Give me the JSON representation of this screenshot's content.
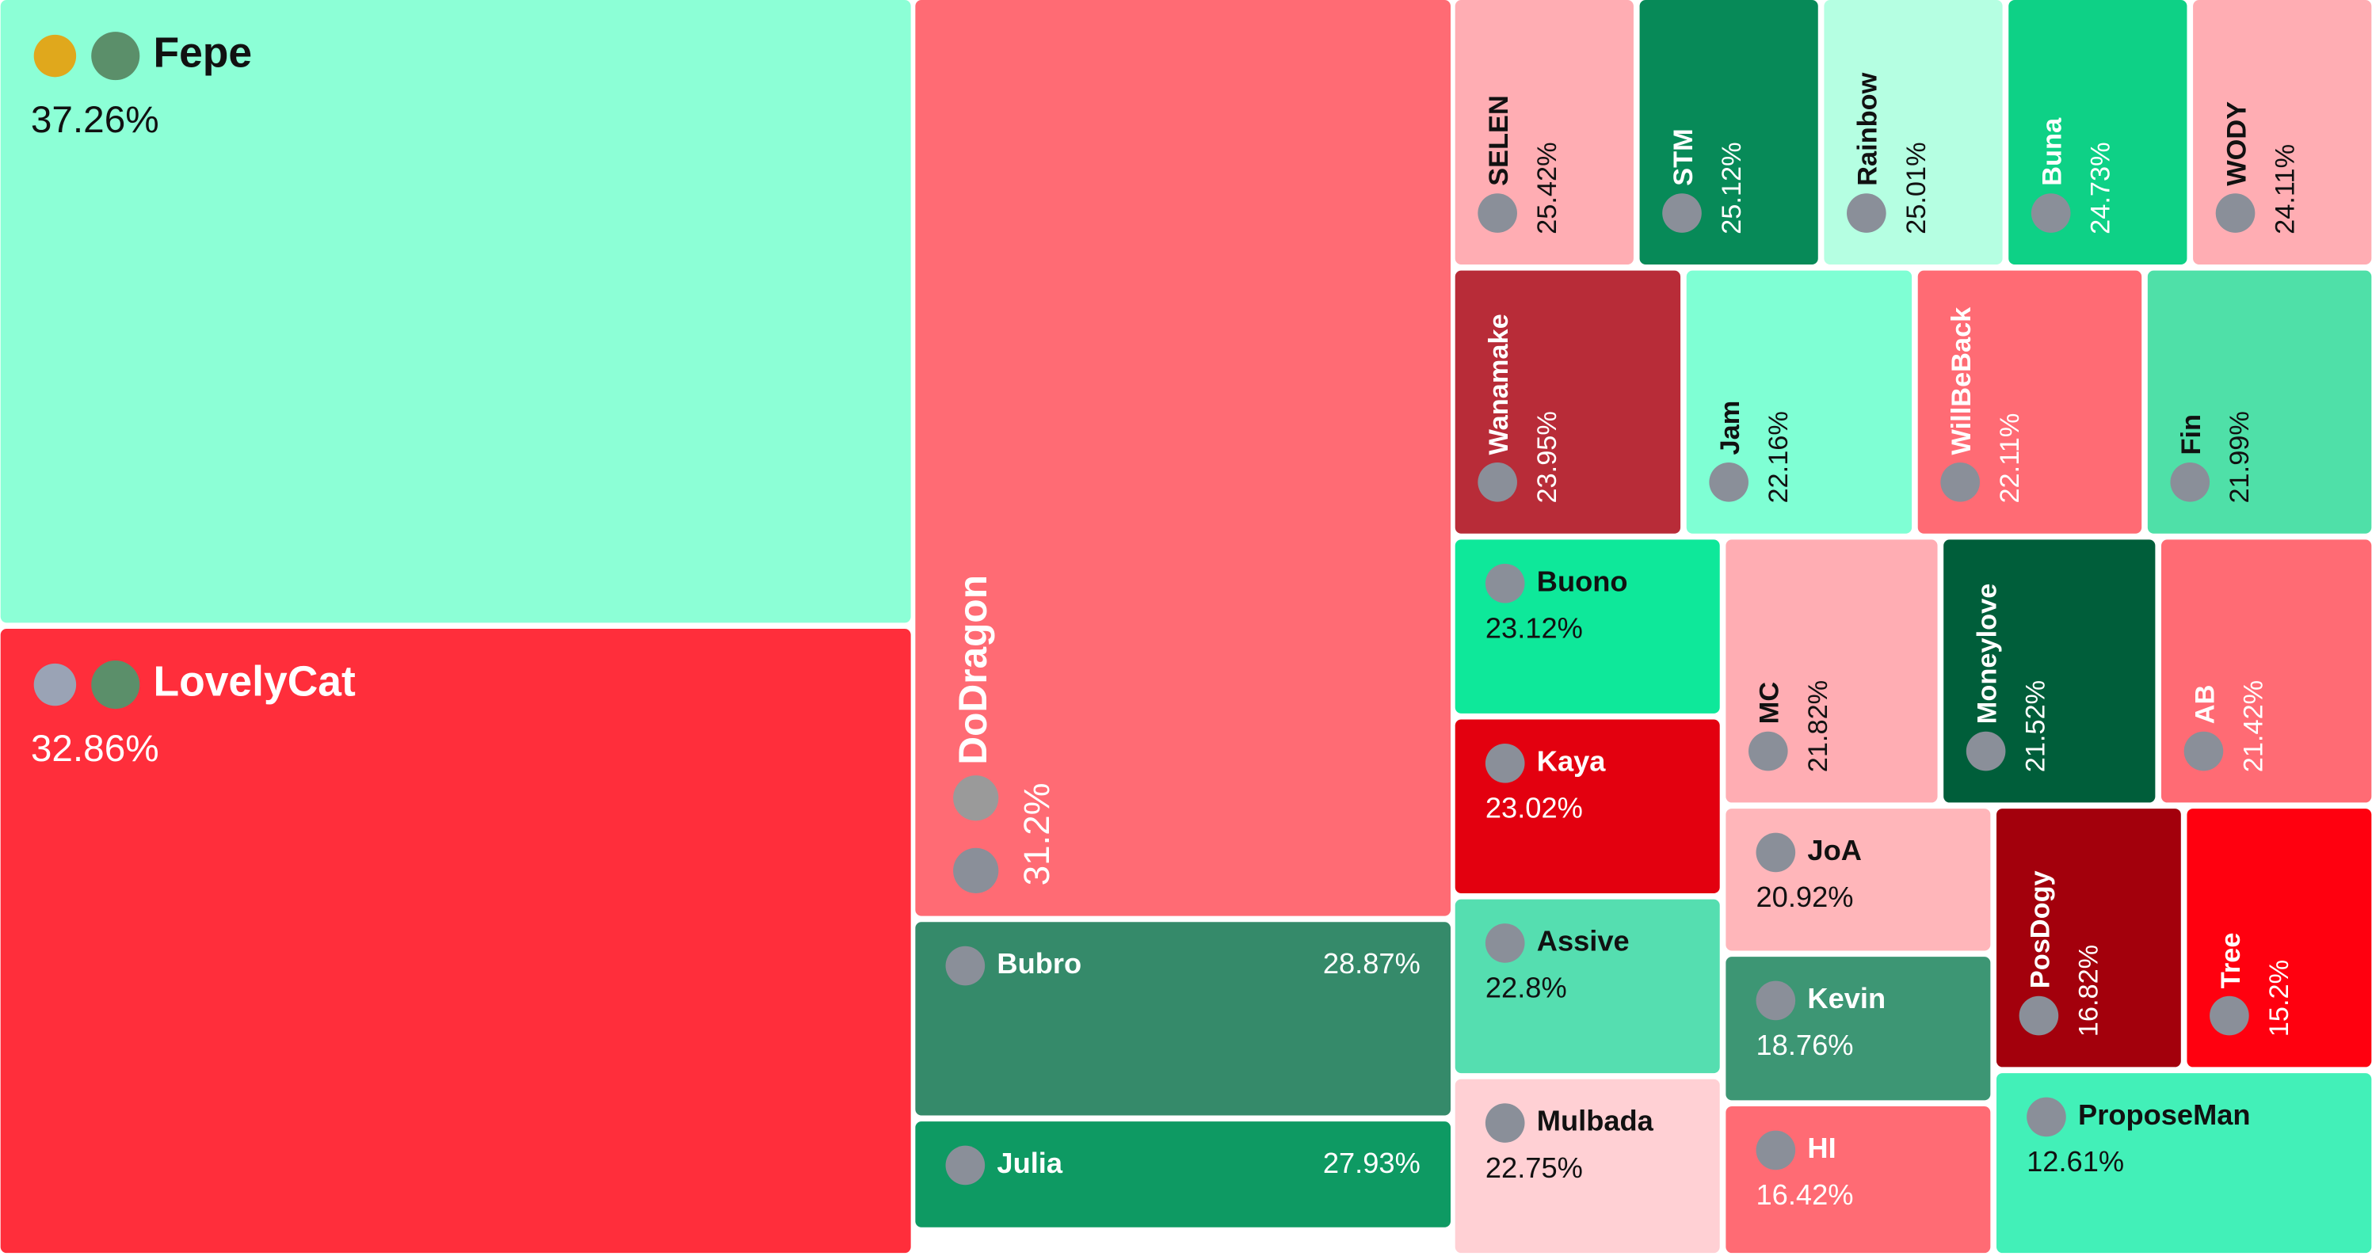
{
  "chart_data": {
    "type": "treemap",
    "categories": [
      "Fepe",
      "LovelyCat",
      "DoDragon",
      "Bubro",
      "Julia",
      "SELEN",
      "STM",
      "Rainbow",
      "Buna",
      "WODY",
      "Wanamake",
      "Jam",
      "WillBeBack",
      "Fin",
      "Buono",
      "Kaya",
      "Assive",
      "Mulbada",
      "MC",
      "Moneylove",
      "AB",
      "JoA",
      "Kevin",
      "HI",
      "PosDogy",
      "Tree",
      "ProposeMan"
    ],
    "values": [
      37.26,
      32.86,
      31.2,
      28.87,
      27.93,
      25.42,
      25.12,
      25.01,
      24.73,
      24.11,
      23.95,
      22.16,
      22.11,
      21.99,
      23.12,
      23.02,
      22.8,
      22.75,
      21.82,
      21.52,
      21.42,
      20.92,
      18.76,
      16.42,
      16.82,
      15.2,
      12.61
    ],
    "value_labels": [
      "37.26%",
      "32.86%",
      "31.2%",
      "28.87%",
      "27.93%",
      "25.42%",
      "25.12%",
      "25.01%",
      "24.73%",
      "24.11%",
      "23.95%",
      "22.16%",
      "22.11%",
      "21.99%",
      "23.12%",
      "23.02%",
      "22.8%",
      "22.75%",
      "21.82%",
      "21.52%",
      "21.42%",
      "20.92%",
      "18.76%",
      "16.42%",
      "16.82%",
      "15.2%",
      "12.61%"
    ],
    "colors": [
      "#8cffd6",
      "#ff2e3b",
      "#ff6b74",
      "#358a6a",
      "#0e9a63",
      "#ffadb3",
      "#078a58",
      "#b5ffe2",
      "#0ed186",
      "#ffadb3",
      "#b82c38",
      "#7fffd4",
      "#ff6b74",
      "#4fe0a8",
      "#0ee89a",
      "#e3000f",
      "#55deb0",
      "#ffd0d4",
      "#ffadb3",
      "#005e3a",
      "#ff6b74",
      "#ffb6ba",
      "#3d9674",
      "#ff6b74",
      "#a3000c",
      "#ff000f",
      "#42f0b8"
    ]
  }
}
